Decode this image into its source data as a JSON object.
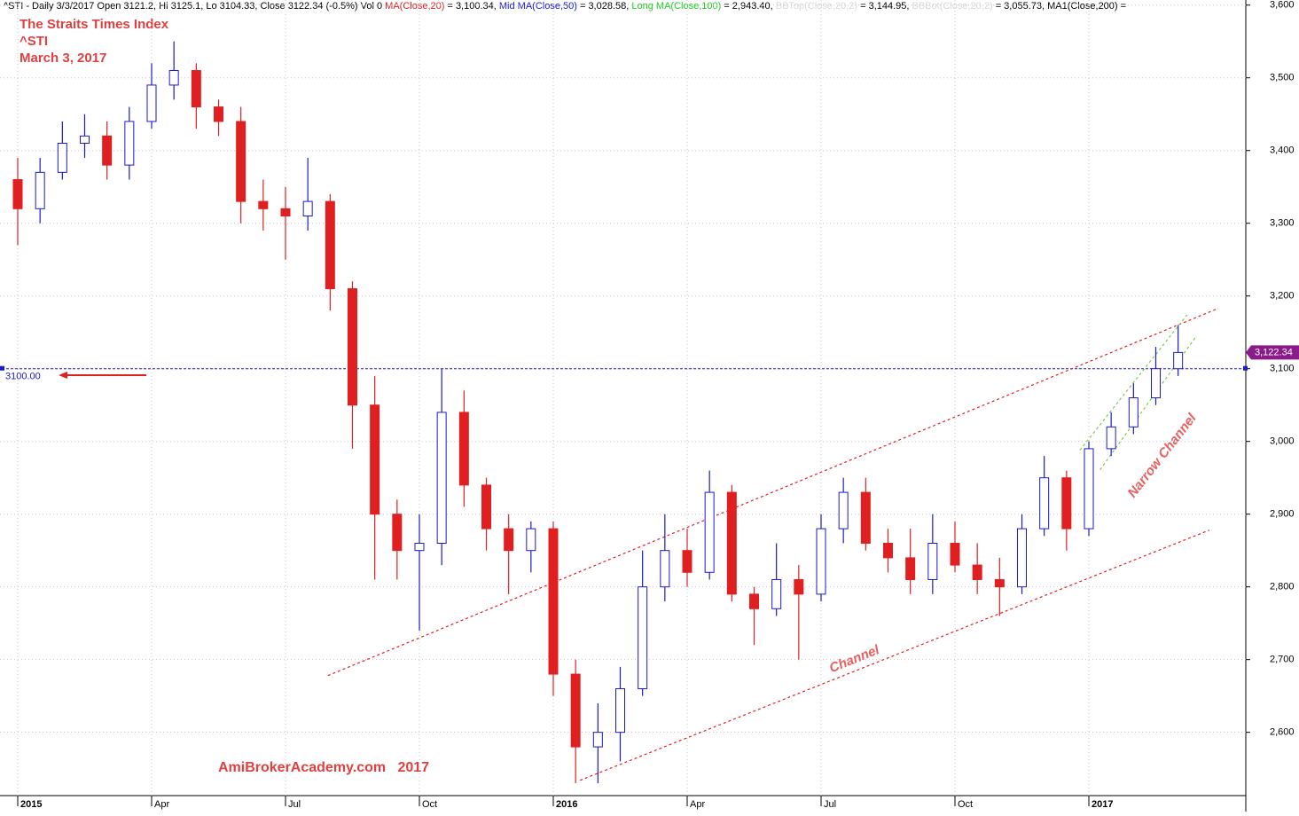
{
  "chart_data": {
    "type": "candlestick",
    "header": [
      {
        "text": "^STI - Daily 3/3/2017 Open 3121.2, Hi 3125.1, Lo 3104.33, Close 3122.34 (-0.5%) Vol 0 ",
        "color": "#000000"
      },
      {
        "text": "MA(Close,20)",
        "color": "#e02020"
      },
      {
        "text": " = 3,100.34, ",
        "color": "#000000"
      },
      {
        "text": "Mid MA(Close,50)",
        "color": "#1a1ad0"
      },
      {
        "text": " = 3,028.58, ",
        "color": "#000000"
      },
      {
        "text": "Long MA(Close,100)",
        "color": "#22cc22"
      },
      {
        "text": " = 2,943.40, ",
        "color": "#000000"
      },
      {
        "text": "BBTop(Close,20,2)",
        "color": "#d8d8d8"
      },
      {
        "text": " = 3,144.95, ",
        "color": "#000000"
      },
      {
        "text": "BBBot(Close,20,2)",
        "color": "#d8d8d8"
      },
      {
        "text": " = 3,055.73, MA1(Close,200) = ",
        "color": "#000000"
      }
    ],
    "title": "The Straits Times Index",
    "symbol": "^STI",
    "date": "March 3, 2017",
    "watermark": "AmiBrokerAcademy.com   2017",
    "categories": [
      "2015",
      null,
      null,
      null,
      null,
      null,
      "Apr",
      null,
      null,
      null,
      null,
      null,
      "Jul",
      null,
      null,
      null,
      null,
      null,
      "Oct",
      null,
      null,
      null,
      null,
      null,
      "2016",
      null,
      null,
      null,
      null,
      null,
      "Apr",
      null,
      null,
      null,
      null,
      null,
      "Jul",
      null,
      null,
      null,
      null,
      null,
      "Oct",
      null,
      null,
      null,
      null,
      null,
      "2017",
      null,
      null,
      null,
      null
    ],
    "open": [
      3360,
      3320,
      3370,
      3410,
      3420,
      3380,
      3440,
      3490,
      3510,
      3460,
      3440,
      3330,
      3320,
      3310,
      3330,
      3210,
      3050,
      2900,
      2850,
      2860,
      3040,
      2940,
      2880,
      2850,
      2880,
      2680,
      2580,
      2600,
      2660,
      2800,
      2850,
      2820,
      2930,
      2790,
      2770,
      2810,
      2790,
      2880,
      2930,
      2860,
      2840,
      2810,
      2860,
      2830,
      2810,
      2800,
      2880,
      2950,
      2880,
      2990,
      3020,
      3060,
      3100
    ],
    "high": [
      3390,
      3390,
      3440,
      3450,
      3440,
      3460,
      3520,
      3550,
      3520,
      3470,
      3460,
      3360,
      3350,
      3390,
      3340,
      3220,
      3090,
      2920,
      2900,
      3100,
      3070,
      2950,
      2900,
      2890,
      2890,
      2700,
      2640,
      2690,
      2850,
      2900,
      2880,
      2960,
      2940,
      2800,
      2860,
      2830,
      2900,
      2950,
      2950,
      2880,
      2880,
      2900,
      2890,
      2860,
      2840,
      2900,
      2980,
      2960,
      3000,
      3040,
      3080,
      3130,
      3160
    ],
    "low": [
      3270,
      3300,
      3360,
      3390,
      3360,
      3360,
      3430,
      3470,
      3430,
      3420,
      3300,
      3290,
      3250,
      3290,
      3180,
      2990,
      2810,
      2810,
      2740,
      2830,
      2910,
      2850,
      2790,
      2820,
      2650,
      2530,
      2530,
      2560,
      2650,
      2780,
      2800,
      2810,
      2780,
      2720,
      2760,
      2700,
      2780,
      2860,
      2850,
      2820,
      2790,
      2790,
      2820,
      2790,
      2760,
      2790,
      2870,
      2850,
      2870,
      2980,
      3010,
      3050,
      3090
    ],
    "close": [
      3320,
      3370,
      3410,
      3420,
      3380,
      3440,
      3490,
      3510,
      3460,
      3440,
      3330,
      3320,
      3310,
      3330,
      3210,
      3050,
      2900,
      2850,
      2860,
      3040,
      2940,
      2880,
      2850,
      2880,
      2680,
      2580,
      2600,
      2660,
      2800,
      2850,
      2820,
      2930,
      2790,
      2770,
      2810,
      2790,
      2880,
      2930,
      2860,
      2840,
      2810,
      2860,
      2830,
      2810,
      2800,
      2880,
      2950,
      2880,
      2990,
      3020,
      3060,
      3100,
      3122.34
    ],
    "up_color": "#1a1ad0",
    "down_color": "#e02020",
    "last_label": "3,122.34",
    "last_label_color": "#8b1a8b",
    "ylim": [
      2513,
      3607
    ],
    "yticks": [
      {
        "value": 2600,
        "label": "2,600"
      },
      {
        "value": 2700,
        "label": "2,700"
      },
      {
        "value": 2800,
        "label": "2,800"
      },
      {
        "value": 2900,
        "label": "2,900"
      },
      {
        "value": 3000,
        "label": "3,000"
      },
      {
        "value": 3100,
        "label": "3,100"
      },
      {
        "value": 3200,
        "label": "3,200"
      },
      {
        "value": 3300,
        "label": "3,300"
      },
      {
        "value": 3400,
        "label": "3,400"
      },
      {
        "value": 3500,
        "label": "3,500"
      },
      {
        "value": 3600,
        "label": "3,600"
      }
    ],
    "grid": true,
    "reference": {
      "value": 3100,
      "label": "3100.00",
      "color": "#1a1ad0"
    },
    "trend_lines": [
      {
        "from": [
          13.9,
          2678
        ],
        "to": [
          53.8,
          3183
        ],
        "color": "#e02020"
      },
      {
        "from": [
          25.2,
          2534
        ],
        "to": [
          53.4,
          2878
        ],
        "color": "#e02020"
      },
      {
        "from": [
          47.6,
          2988
        ],
        "to": [
          52.4,
          3174
        ],
        "color": "#7ac943"
      },
      {
        "from": [
          48.5,
          2961
        ],
        "to": [
          52.8,
          3144
        ],
        "color": "#7ac943"
      }
    ],
    "annotations": [
      {
        "text": "Channel",
        "at": [
          37.5,
          2700
        ],
        "angle": -22
      },
      {
        "text": "Narrow Channel",
        "at": [
          51.3,
          2980
        ],
        "angle": -52
      }
    ]
  }
}
